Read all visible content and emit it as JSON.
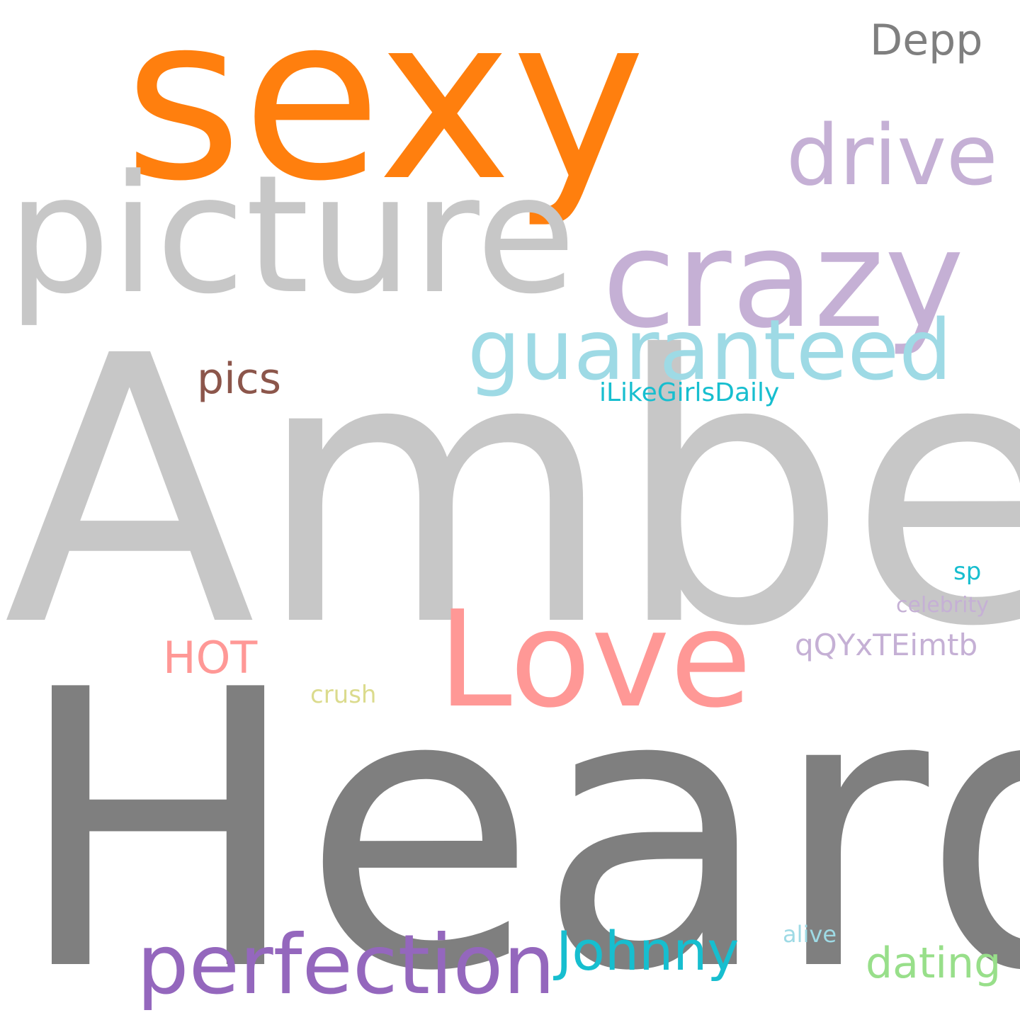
{
  "cloud": {
    "background": "#ffffff",
    "words": [
      {
        "text": "Heard",
        "color": "#7f7f7f"
      },
      {
        "text": "Amber",
        "color": "#c7c7c7"
      },
      {
        "text": "sexy",
        "color": "#ff7f0e"
      },
      {
        "text": "picture",
        "color": "#c7c7c7"
      },
      {
        "text": "crazy",
        "color": "#c5b0d5"
      },
      {
        "text": "drive",
        "color": "#c5b0d5"
      },
      {
        "text": "Love",
        "color": "#ff9896"
      },
      {
        "text": "guaranteed",
        "color": "#9edae5"
      },
      {
        "text": "perfection",
        "color": "#9467bd"
      },
      {
        "text": "Johnny",
        "color": "#17becf"
      },
      {
        "text": "dating",
        "color": "#98df8a"
      },
      {
        "text": "Depp",
        "color": "#7f7f7f"
      },
      {
        "text": "pics",
        "color": "#8c564b"
      },
      {
        "text": "HOT",
        "color": "#ff9896"
      },
      {
        "text": "iLikeGirlsDaily",
        "color": "#17becf"
      },
      {
        "text": "qQYxTEimtb",
        "color": "#c5b0d5"
      },
      {
        "text": "crush",
        "color": "#dbdb8d"
      },
      {
        "text": "sp",
        "color": "#17becf"
      },
      {
        "text": "celebrity",
        "color": "#c5b0d5"
      },
      {
        "text": "alive",
        "color": "#9edae5"
      }
    ]
  }
}
